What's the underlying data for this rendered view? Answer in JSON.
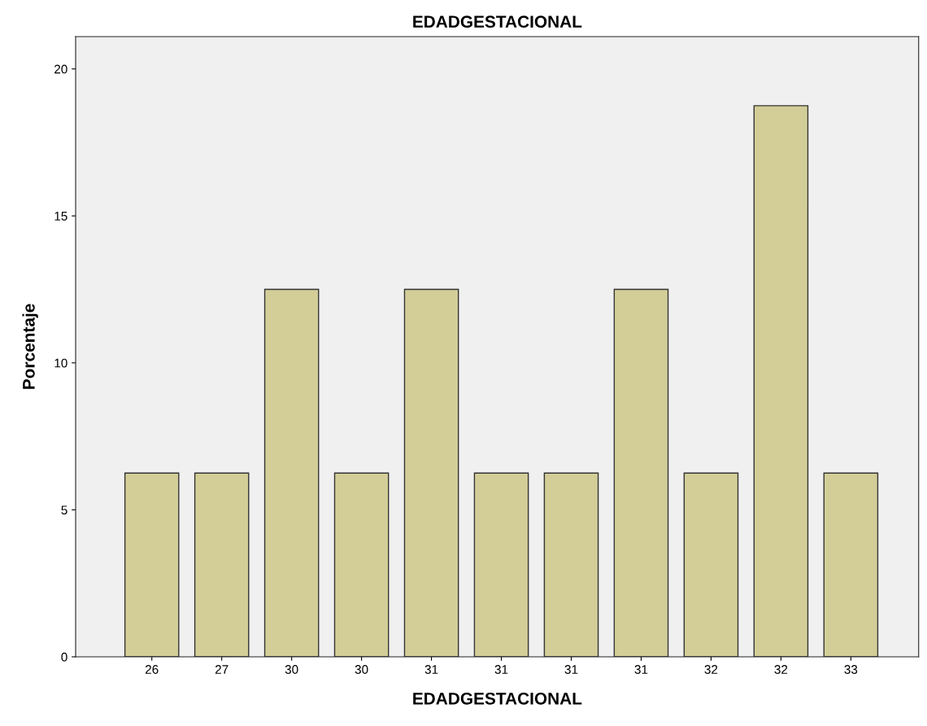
{
  "chart_data": {
    "type": "bar",
    "title": "EDADGESTACIONAL",
    "xlabel": "EDADGESTACIONAL",
    "ylabel": "Porcentaje",
    "categories": [
      "26",
      "27",
      "30",
      "30",
      "31",
      "31",
      "31",
      "31",
      "32",
      "32",
      "33"
    ],
    "values": [
      6.25,
      6.25,
      12.5,
      6.25,
      12.5,
      6.25,
      6.25,
      12.5,
      6.25,
      18.75,
      6.25
    ],
    "color": "#d3ce98",
    "ylim": [
      0,
      21.1
    ],
    "yticks": [
      0,
      5,
      10,
      15,
      20
    ],
    "grid": false
  }
}
